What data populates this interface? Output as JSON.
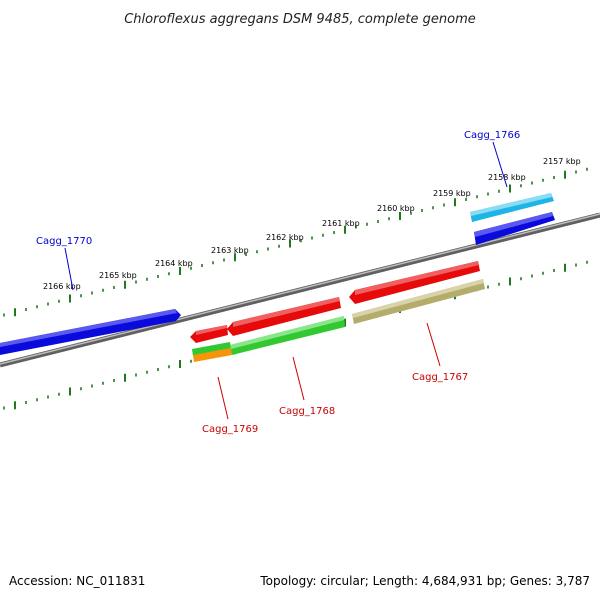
{
  "title": "Chloroflexus aggregans DSM 9485, complete genome",
  "accession_text": "Accession: NC_011831",
  "summary_text": "Topology: circular; Length: 4,684,931 bp; Genes: 3,787",
  "colors": {
    "backbone": "#808080",
    "ticks": "#1f7a1f",
    "forward_label": "#0000cc",
    "reverse_label": "#cc0000",
    "gene_blue": "#0a0adc",
    "gene_light_blue": "#1eb4e6",
    "gene_red": "#e60a0a",
    "gene_green": "#32c832",
    "gene_olive": "#b4ac6a",
    "gene_orange": "#f5960a"
  },
  "tick_labels": [
    "2157 kbp",
    "2158 kbp",
    "2159 kbp",
    "2160 kbp",
    "2161 kbp",
    "2162 kbp",
    "2163 kbp",
    "2164 kbp",
    "2165 kbp",
    "2166 kbp"
  ],
  "gene_labels": {
    "cagg_1766": "Cagg_1766",
    "cagg_1770": "Cagg_1770",
    "cagg_1767": "Cagg_1767",
    "cagg_1768": "Cagg_1768",
    "cagg_1769": "Cagg_1769"
  }
}
